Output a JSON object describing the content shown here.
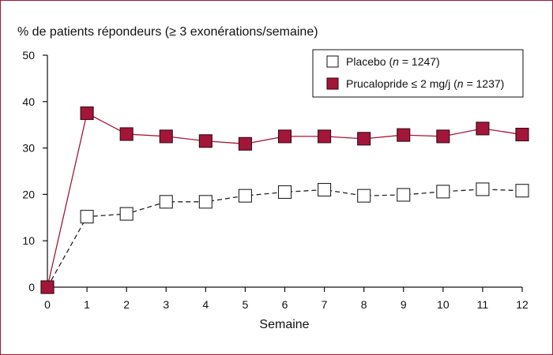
{
  "chart_data": {
    "type": "line",
    "title": "% de patients répondeurs (≥ 3 exonérations/semaine)",
    "xlabel": "Semaine",
    "ylabel": "",
    "x": [
      0,
      1,
      2,
      3,
      4,
      5,
      6,
      7,
      8,
      9,
      10,
      11,
      12
    ],
    "xlim": [
      0,
      12
    ],
    "ylim": [
      0,
      50
    ],
    "yticks": [
      0,
      10,
      20,
      30,
      40,
      50
    ],
    "xticks": [
      0,
      1,
      2,
      3,
      4,
      5,
      6,
      7,
      8,
      9,
      10,
      11,
      12
    ],
    "grid": false,
    "legend_position": "top-right",
    "series": [
      {
        "name": "Placebo",
        "n_label": "n",
        "n_value": "= 1247)",
        "name_prefix": "Placebo (",
        "marker": "open-square",
        "line": "dashed",
        "color": "#222222",
        "fill": "#ffffff",
        "values": [
          0,
          15.2,
          15.8,
          18.4,
          18.4,
          19.7,
          20.5,
          21.0,
          19.7,
          19.9,
          20.6,
          21.1,
          20.8
        ]
      },
      {
        "name": "Prucalopride ≤ 2 mg/j",
        "n_label": "n",
        "n_value": "= 1237)",
        "name_prefix": "Prucalopride ≤ 2 mg/j (",
        "marker": "filled-square",
        "line": "solid",
        "color": "#a3163a",
        "fill": "#a3163a",
        "values": [
          0,
          37.5,
          33.0,
          32.5,
          31.5,
          30.9,
          32.5,
          32.5,
          32.0,
          32.8,
          32.5,
          34.2,
          32.9
        ]
      }
    ]
  },
  "colors": {
    "frame": "#a3163a",
    "axis": "#111111",
    "accent": "#a3163a"
  }
}
